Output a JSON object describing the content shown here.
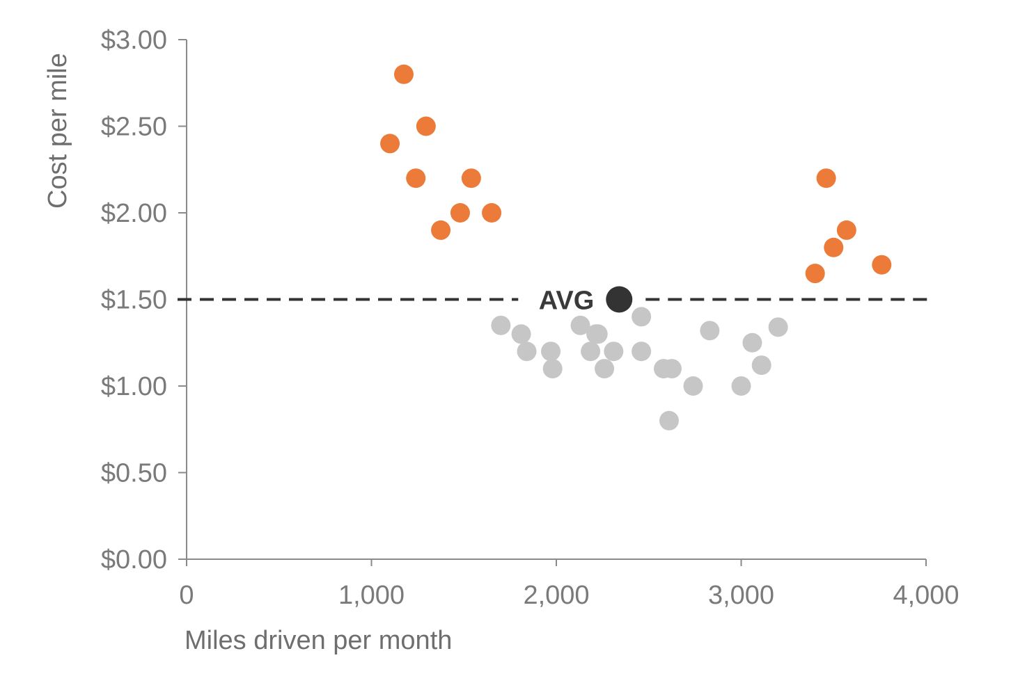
{
  "chart_data": {
    "type": "scatter",
    "xlabel": "Miles driven per month",
    "ylabel": "Cost per mile",
    "xlim": [
      0,
      4000
    ],
    "ylim": [
      0,
      3
    ],
    "x_ticks": [
      {
        "value": 0,
        "label": "0"
      },
      {
        "value": 1000,
        "label": "1,000"
      },
      {
        "value": 2000,
        "label": "2,000"
      },
      {
        "value": 3000,
        "label": "3,000"
      },
      {
        "value": 4000,
        "label": "4,000"
      }
    ],
    "y_ticks": [
      {
        "value": 0,
        "label": "$0.00"
      },
      {
        "value": 0.5,
        "label": "$0.50"
      },
      {
        "value": 1,
        "label": "$1.00"
      },
      {
        "value": 1.5,
        "label": "$1.50"
      },
      {
        "value": 2,
        "label": "$2.00"
      },
      {
        "value": 2.5,
        "label": "$2.50"
      },
      {
        "value": 3,
        "label": "$3.00"
      }
    ],
    "grid": false,
    "colors": {
      "high_cost": "#ec7a38",
      "low_cost": "#c6c6c6",
      "average": "#333333",
      "reference_line": "#333333",
      "axis": "#8a8a8a"
    },
    "reference_line": {
      "y": 1.5,
      "style": "dashed"
    },
    "average_point": {
      "x": 2340,
      "y": 1.5,
      "label": "AVG"
    },
    "series": [
      {
        "points": [
          {
            "x": 1100,
            "y": 2.4
          },
          {
            "x": 1175,
            "y": 2.8
          },
          {
            "x": 1240,
            "y": 2.2
          },
          {
            "x": 1295,
            "y": 2.5
          },
          {
            "x": 1375,
            "y": 1.9
          },
          {
            "x": 1480,
            "y": 2.0
          },
          {
            "x": 1540,
            "y": 2.2
          },
          {
            "x": 1650,
            "y": 2.0
          },
          {
            "x": 3400,
            "y": 1.65
          },
          {
            "x": 3460,
            "y": 2.2
          },
          {
            "x": 3500,
            "y": 1.8
          },
          {
            "x": 3570,
            "y": 1.9
          },
          {
            "x": 3760,
            "y": 1.7
          }
        ]
      },
      {
        "points": [
          {
            "x": 1700,
            "y": 1.35
          },
          {
            "x": 1810,
            "y": 1.3
          },
          {
            "x": 1840,
            "y": 1.2
          },
          {
            "x": 1970,
            "y": 1.2
          },
          {
            "x": 1980,
            "y": 1.1
          },
          {
            "x": 2130,
            "y": 1.35
          },
          {
            "x": 2185,
            "y": 1.2
          },
          {
            "x": 2215,
            "y": 1.3
          },
          {
            "x": 2225,
            "y": 1.3
          },
          {
            "x": 2260,
            "y": 1.1
          },
          {
            "x": 2310,
            "y": 1.2
          },
          {
            "x": 2460,
            "y": 1.4
          },
          {
            "x": 2460,
            "y": 1.2
          },
          {
            "x": 2580,
            "y": 1.1
          },
          {
            "x": 2610,
            "y": 0.8
          },
          {
            "x": 2625,
            "y": 1.1
          },
          {
            "x": 2740,
            "y": 1.0
          },
          {
            "x": 2830,
            "y": 1.32
          },
          {
            "x": 3000,
            "y": 1.0
          },
          {
            "x": 3060,
            "y": 1.25
          },
          {
            "x": 3110,
            "y": 1.12
          },
          {
            "x": 3200,
            "y": 1.34
          }
        ]
      }
    ]
  }
}
